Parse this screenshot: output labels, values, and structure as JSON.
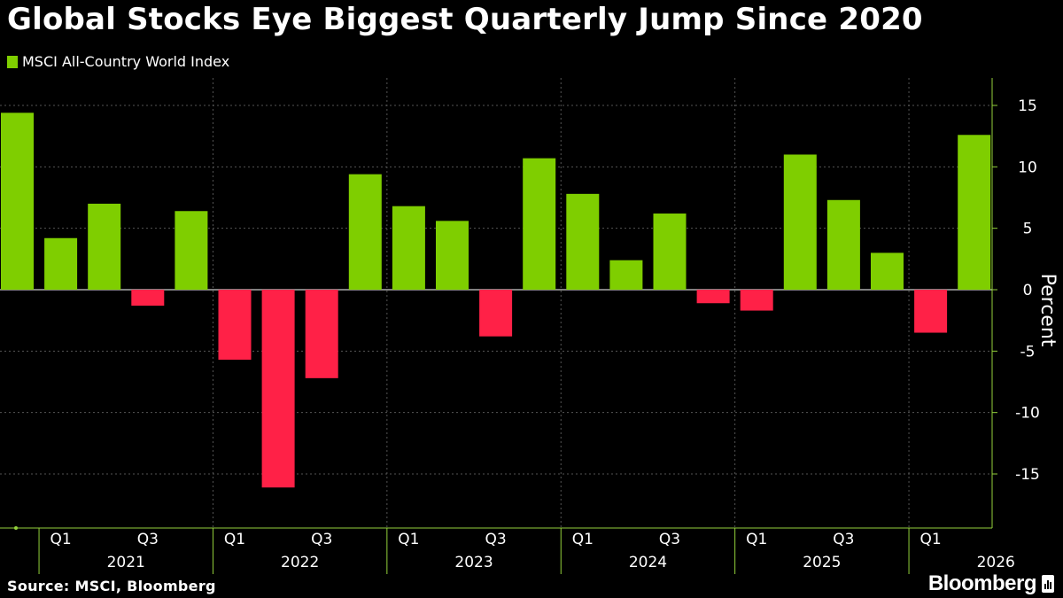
{
  "title": "Global Stocks Eye Biggest Quarterly Jump Since 2020",
  "source": "Source: MSCI, Bloomberg",
  "brand": "Bloomberg",
  "colors": {
    "positive": "#7fce00",
    "negative": "#ff2147",
    "axis": "#93d13b",
    "grid": "#555555",
    "background": "#000000",
    "text": "#ffffff"
  },
  "chart_data": {
    "type": "bar",
    "title": "Global Stocks Eye Biggest Quarterly Jump Since 2020",
    "ylabel": "Percent",
    "xlabel": "",
    "ylim": [
      -19,
      15
    ],
    "yticks": [
      15,
      10,
      5,
      0,
      -5,
      -10,
      -15
    ],
    "legend_position": "top-left",
    "grid": true,
    "series": [
      {
        "name": "MSCI All-Country World Index",
        "values": [
          14.4,
          4.2,
          7.0,
          -1.3,
          6.4,
          -5.7,
          -16.1,
          -7.2,
          9.4,
          6.8,
          5.6,
          -3.8,
          10.7,
          7.8,
          2.4,
          6.2,
          -1.1,
          -1.7,
          11.0,
          7.3,
          3.0,
          -3.5,
          12.6
        ]
      }
    ],
    "categories": [
      "2020 Q4",
      "2021 Q1",
      "2021 Q2",
      "2021 Q3",
      "2021 Q4",
      "2022 Q1",
      "2022 Q2",
      "2022 Q3",
      "2022 Q4",
      "2023 Q1",
      "2023 Q2",
      "2023 Q3",
      "2023 Q4",
      "2024 Q1",
      "2024 Q2",
      "2024 Q3",
      "2024 Q4",
      "2025 Q1",
      "2025 Q2",
      "2025 Q3",
      "2025 Q4",
      "2026 Q1",
      "2026 Q2"
    ],
    "quarter_tick_labels": [
      "Q1",
      "Q3",
      "Q1",
      "Q3",
      "Q1",
      "Q3",
      "Q1",
      "Q3",
      "Q1",
      "Q3",
      "Q1"
    ],
    "year_labels": [
      "2021",
      "2022",
      "2023",
      "2024",
      "2025",
      "2026"
    ]
  }
}
